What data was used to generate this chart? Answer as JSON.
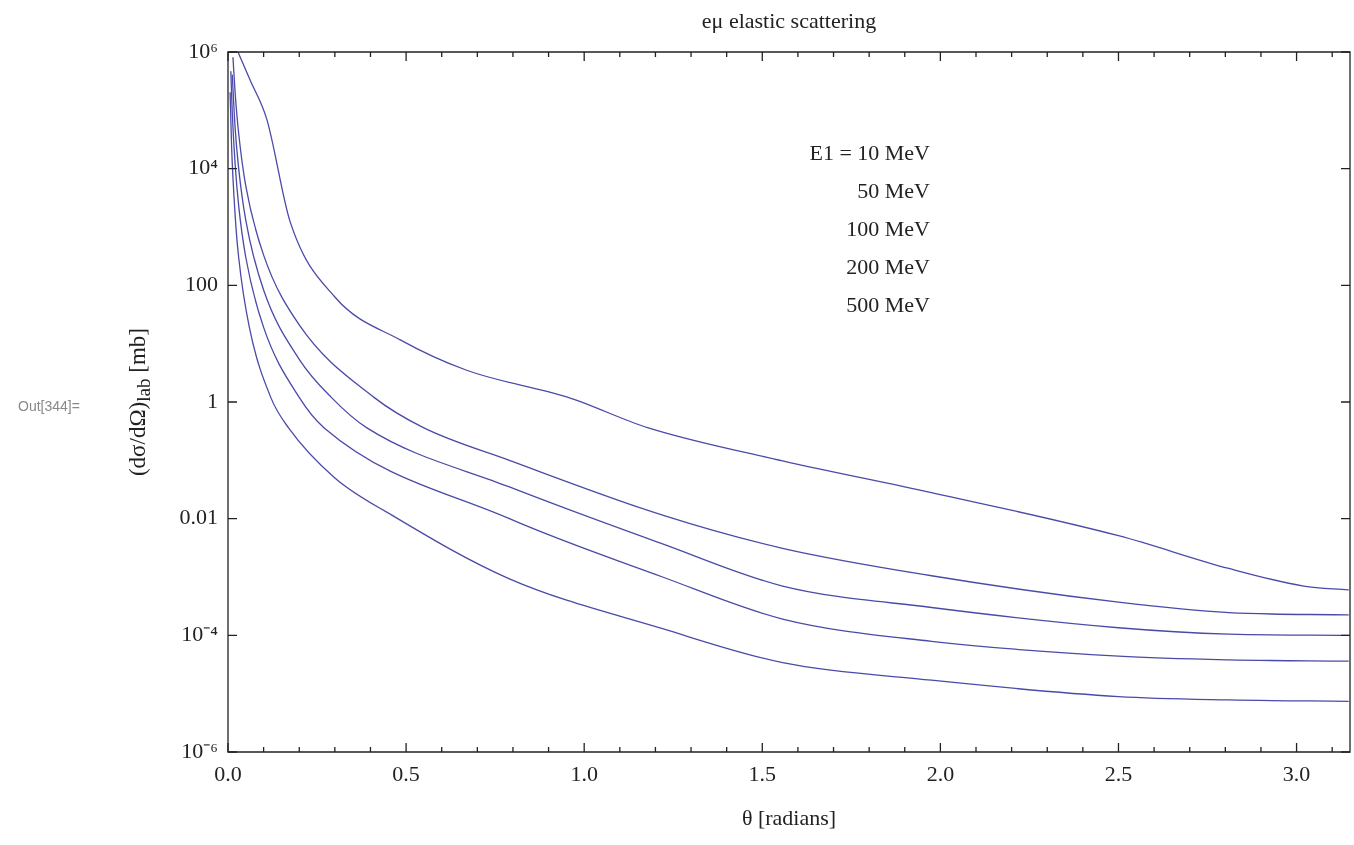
{
  "chart_data": {
    "type": "line",
    "title": "eμ elastic scattering",
    "xlabel": "θ [radians]",
    "ylabel": "(dσ/dΩ)$_{lab}$ [mb]",
    "annotations": [
      "E1 = 10 MeV",
      "50 MeV",
      "100 MeV",
      "200 MeV",
      "500 MeV",
      "Out[344]="
    ],
    "log": "y",
    "marker": "none",
    "xlim": [
      0,
      3.15
    ],
    "xticks": [
      {
        "value": 0,
        "label": "0.0"
      },
      {
        "value": 0.1,
        "label": null
      },
      {
        "value": 0.2,
        "label": null
      },
      {
        "value": 0.3,
        "label": null
      },
      {
        "value": 0.4,
        "label": null
      },
      {
        "value": 0.5,
        "label": "0.5"
      },
      {
        "value": 0.6,
        "label": null
      },
      {
        "value": 0.7,
        "label": null
      },
      {
        "value": 0.8,
        "label": null
      },
      {
        "value": 0.9,
        "label": null
      },
      {
        "value": 1,
        "label": "1.0"
      },
      {
        "value": 1.1,
        "label": null
      },
      {
        "value": 1.2,
        "label": null
      },
      {
        "value": 1.3,
        "label": null
      },
      {
        "value": 1.4,
        "label": null
      },
      {
        "value": 1.5,
        "label": "1.5"
      },
      {
        "value": 1.6,
        "label": null
      },
      {
        "value": 1.7,
        "label": null
      },
      {
        "value": 1.8,
        "label": null
      },
      {
        "value": 1.9,
        "label": null
      },
      {
        "value": 2,
        "label": "2.0"
      },
      {
        "value": 2.1,
        "label": null
      },
      {
        "value": 2.2,
        "label": null
      },
      {
        "value": 2.3,
        "label": null
      },
      {
        "value": 2.4,
        "label": null
      },
      {
        "value": 2.5,
        "label": "2.5"
      },
      {
        "value": 2.6,
        "label": null
      },
      {
        "value": 2.7,
        "label": null
      },
      {
        "value": 2.8,
        "label": null
      },
      {
        "value": 2.9,
        "label": null
      },
      {
        "value": 3,
        "label": "3.0"
      },
      {
        "value": 3.1,
        "label": null
      }
    ],
    "ylim": [
      1e-06,
      1000000
    ],
    "yticks": [
      {
        "value": 1e-06,
        "label": "10⁻⁶"
      },
      {
        "value": 0.0001,
        "label": "10⁻⁴"
      },
      0.01,
      1,
      100,
      {
        "value": 10000,
        "label": "10⁴"
      },
      {
        "value": 1000000,
        "label": "10⁶"
      }
    ],
    "series": [
      {
        "color": "#4a4aa8",
        "x": [
          0.028,
          0.062,
          0.109,
          0.175,
          0.3,
          0.485,
          0.67,
          0.955,
          1.18,
          1.557,
          1.975,
          2.5,
          2.81,
          3.02,
          3.145
        ],
        "values": [
          1000000,
          330000,
          70000,
          1200,
          63,
          11.5,
          3.5,
          1.2,
          0.36,
          0.098,
          0.028,
          0.0051,
          0.0014,
          0.0007,
          0.0006
        ]
      },
      {
        "color": "#4a4aa8",
        "x": [
          0.014,
          0.02,
          0.03,
          0.05,
          0.1,
          0.2,
          0.41,
          0.55,
          0.79,
          1.22,
          1.557,
          1.975,
          2.5,
          2.81,
          3.145
        ],
        "values": [
          800000,
          200000,
          40000,
          5000,
          330,
          21,
          1.2,
          0.36,
          0.1,
          0.0115,
          0.0031,
          0.00105,
          0.00037,
          0.000245,
          0.000224
        ]
      },
      {
        "color": "#4a4aa8",
        "x": [
          0.012,
          0.02,
          0.03,
          0.05,
          0.1,
          0.2,
          0.29,
          0.39,
          0.79,
          1.22,
          1.557,
          1.975,
          2.5,
          2.81,
          3.145
        ],
        "values": [
          400000,
          50000,
          10000,
          1300,
          83,
          5.4,
          1.2,
          0.36,
          0.035,
          0.0037,
          0.0007,
          0.0003,
          0.000135,
          0.000105,
          0.0001
        ]
      },
      {
        "color": "#4a4aa8",
        "x": [
          0.008,
          0.012,
          0.02,
          0.03,
          0.05,
          0.1,
          0.2,
          0.27,
          0.79,
          1.22,
          1.557,
          1.975,
          2.5,
          2.81,
          3.145
        ],
        "values": [
          460000,
          90000,
          12000,
          2300,
          300,
          19,
          1.2,
          0.36,
          0.01,
          0.001,
          0.00019,
          7.9e-05,
          4.4e-05,
          3.8e-05,
          3.6e-05
        ]
      },
      {
        "color": "#4a4aa8",
        "x": [
          0.006,
          0.01,
          0.02,
          0.03,
          0.06,
          0.12,
          0.17,
          0.3,
          0.46,
          0.79,
          1.22,
          1.557,
          1.975,
          2.5,
          2.81,
          3.145
        ],
        "values": [
          200000,
          25000,
          1600,
          300,
          19,
          1.2,
          0.36,
          0.05,
          0.0115,
          0.00093,
          0.00013,
          3.4e-05,
          1.7e-05,
          8.9e-06,
          7.8e-06,
          7.4e-06
        ]
      }
    ]
  }
}
